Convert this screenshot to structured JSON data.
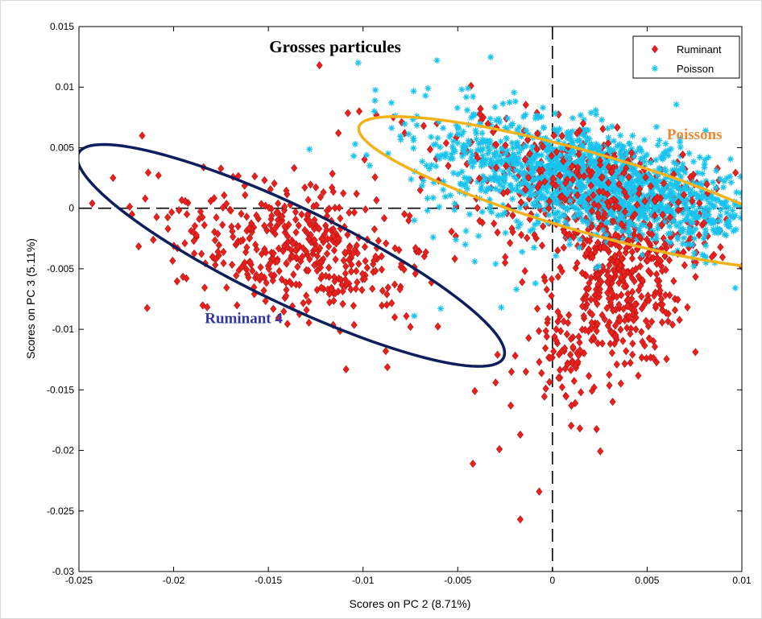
{
  "chart_data": {
    "type": "scatter",
    "title": "Grosses particules",
    "xlabel": "Scores on PC 2 (8.71%)",
    "ylabel": "Scores on PC 3 (5.11%)",
    "xlim": [
      -0.025,
      0.01
    ],
    "ylim": [
      -0.03,
      0.015
    ],
    "x_ticks": [
      "-0.025",
      "-0.02",
      "-0.015",
      "-0.01",
      "-0.005",
      "0",
      "0.005",
      "0.01"
    ],
    "y_ticks": [
      "0.015",
      "0.01",
      "0.005",
      "0",
      "-0.005",
      "-0.01",
      "-0.015",
      "-0.02",
      "-0.025",
      "-0.03"
    ],
    "grid": false,
    "reference_lines": {
      "x": 0,
      "y": 0,
      "style": "dashed"
    },
    "legend": {
      "position": "top-right",
      "entries": [
        "Ruminant",
        "Poisson"
      ]
    },
    "colors": {
      "ruminant": "#e8211f",
      "poisson": "#18c4ef",
      "ruminant_ellipse": "#0d1e5c",
      "poisson_ellipse": "#f3b21b",
      "ruminant_label": "#3136a6",
      "poisson_label": "#f08a32"
    },
    "annotations": [
      {
        "text": "Ruminant 4",
        "x": -0.0163,
        "y": -0.0095,
        "color": "#3136a6"
      },
      {
        "text": "Poissons",
        "x": 0.0075,
        "y": 0.0057,
        "color": "#f08a32"
      }
    ],
    "ellipses": [
      {
        "group": "Ruminant 4",
        "cx": -0.0138,
        "cy": -0.0039,
        "rx": 0.0141,
        "ry": 0.0035,
        "angle_deg": -38.3,
        "color": "#0d1e5c"
      },
      {
        "group": "Poissons",
        "cx": 0.0019,
        "cy": 0.0013,
        "rx": 0.0133,
        "ry": 0.0031,
        "angle_deg": -24.9,
        "color": "#f3b21b"
      }
    ],
    "series": [
      {
        "name": "Ruminant",
        "marker": "diamond",
        "color": "#e8211f",
        "clusters": [
          {
            "cx": -0.0135,
            "cy": -0.0035,
            "sx": 0.0035,
            "sy": 0.0025,
            "rot_deg": -36,
            "n": 420
          },
          {
            "cx": 0.0035,
            "cy": -0.006,
            "sx": 0.0017,
            "sy": 0.0035,
            "rot_deg": 0,
            "n": 380
          },
          {
            "cx": 0.002,
            "cy": 0.0015,
            "sx": 0.0038,
            "sy": 0.0022,
            "rot_deg": -25,
            "n": 420
          },
          {
            "cx": 0.001,
            "cy": -0.012,
            "sx": 0.0012,
            "sy": 0.0025,
            "rot_deg": 0,
            "n": 60
          }
        ],
        "points": [
          [
            -0.0243,
            0.0004
          ],
          [
            -0.0232,
            0.0025
          ],
          [
            -0.0222,
            -0.0005
          ],
          [
            -0.0215,
            0.0008
          ],
          [
            -0.0208,
            0.0027
          ],
          [
            -0.0203,
            -0.0017
          ],
          [
            -0.0198,
            -0.0033
          ],
          [
            -0.0193,
            -0.0005
          ],
          [
            -0.0123,
            0.0118
          ],
          [
            -0.0113,
            0.0062
          ],
          [
            -0.0102,
            0.008
          ],
          [
            -0.0093,
            0.0077
          ],
          [
            -0.0084,
            0.0075
          ],
          [
            -0.0078,
            0.0062
          ],
          [
            -0.0068,
            0.0068
          ],
          [
            -0.0061,
            0.007
          ],
          [
            -0.0055,
            0.0035
          ],
          [
            -0.0043,
            0.0101
          ],
          [
            -0.0038,
            0.0082
          ],
          [
            -0.0088,
            -0.0118
          ],
          [
            -0.0075,
            -0.0098
          ],
          [
            -0.0045,
            0.0047
          ],
          [
            -0.0037,
            -0.0012
          ],
          [
            -0.0029,
            -0.002
          ],
          [
            -0.0021,
            -0.0006
          ],
          [
            -0.0005,
            -0.0015
          ],
          [
            0.0002,
            -0.01
          ],
          [
            -0.0007,
            -0.0127
          ],
          [
            -0.0014,
            -0.0135
          ],
          [
            -0.0022,
            -0.0163
          ],
          [
            -0.003,
            -0.0144
          ],
          [
            -0.0041,
            -0.0151
          ],
          [
            -0.0029,
            -0.0121
          ],
          [
            -0.0042,
            -0.0211
          ],
          [
            -0.0028,
            -0.0199
          ],
          [
            -0.0017,
            -0.0187
          ],
          [
            -0.0007,
            -0.0234
          ],
          [
            -0.0017,
            -0.0257
          ],
          [
            0.001,
            -0.0163
          ],
          [
            0.0015,
            -0.0152
          ],
          [
            0.0022,
            -0.0148
          ],
          [
            0.0034,
            -0.0129
          ],
          [
            0.0052,
            0.0039
          ],
          [
            0.0064,
            0.0028
          ],
          [
            0.0073,
            -0.0013
          ],
          [
            0.0082,
            -0.0023
          ],
          [
            0.0058,
            -0.0084
          ],
          [
            0.0047,
            -0.0073
          ],
          [
            -0.0012,
            0.0045
          ],
          [
            -0.0009,
            0.0011
          ],
          [
            -0.0025,
            -0.0045
          ],
          [
            -0.0016,
            -0.0061
          ],
          [
            -0.0008,
            -0.0083
          ],
          [
            -0.0003,
            -0.0106
          ],
          [
            0.0004,
            -0.014
          ],
          [
            0.0007,
            -0.0155
          ],
          [
            0.0012,
            -0.0161
          ]
        ]
      },
      {
        "name": "Poisson",
        "marker": "star",
        "color": "#18c4ef",
        "clusters": [
          {
            "cx": 0.0022,
            "cy": 0.0022,
            "sx": 0.0045,
            "sy": 0.0021,
            "rot_deg": -22,
            "n": 1500
          }
        ],
        "points": [
          [
            -0.0061,
            0.0122
          ],
          [
            -0.0045,
            0.0081
          ],
          [
            -0.0085,
            0.0087
          ],
          [
            -0.0094,
            0.008
          ],
          [
            -0.0054,
            0.0041
          ],
          [
            -0.0066,
            -0.0002
          ],
          [
            -0.0073,
            -0.001
          ],
          [
            -0.0063,
            -0.0024
          ],
          [
            -0.0051,
            -0.0026
          ],
          [
            -0.0041,
            -0.0044
          ],
          [
            -0.0039,
            -0.0023
          ],
          [
            -0.003,
            -0.0046
          ],
          [
            -0.0027,
            -0.0082
          ],
          [
            -0.0019,
            -0.0067
          ],
          [
            -0.0009,
            -0.0062
          ],
          [
            -0.0016,
            -0.0036
          ],
          [
            -0.0046,
            -0.003
          ],
          [
            -0.0073,
            -0.0089
          ],
          [
            -0.0059,
            -0.0083
          ],
          [
            0.0081,
            -0.0045
          ],
          [
            0.0075,
            -0.0025
          ],
          [
            0.0071,
            -0.003
          ],
          [
            -0.0005,
            0.0083
          ],
          [
            0.0026,
            0.0073
          ],
          [
            -0.0052,
            0.0048
          ],
          [
            -0.0047,
            0.0052
          ]
        ]
      }
    ]
  }
}
